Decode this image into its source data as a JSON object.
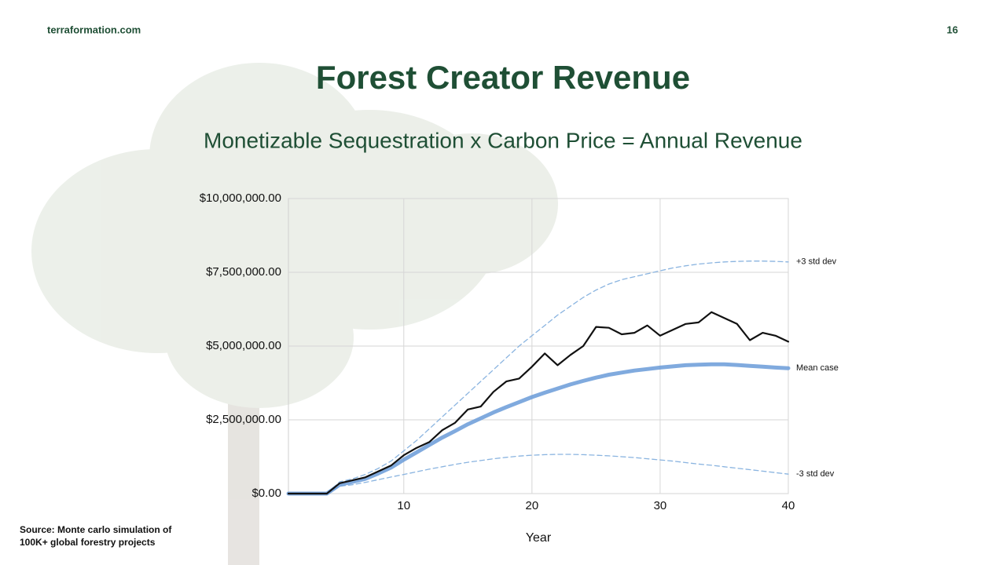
{
  "header": {
    "site": "terraformation.com",
    "page": "16"
  },
  "title": "Forest Creator Revenue",
  "subtitle": "Monetizable Sequestration x Carbon Price = Annual Revenue",
  "source": "Source: Monte carlo simulation of 100K+ global forestry projects",
  "chart_data": {
    "type": "line",
    "x_label": "Year",
    "x": [
      1,
      2,
      3,
      4,
      5,
      6,
      7,
      8,
      9,
      10,
      11,
      12,
      13,
      14,
      15,
      16,
      17,
      18,
      19,
      20,
      21,
      22,
      23,
      24,
      25,
      26,
      27,
      28,
      29,
      30,
      31,
      32,
      33,
      34,
      35,
      36,
      37,
      38,
      39,
      40
    ],
    "xlim": [
      1,
      40
    ],
    "xticks": [
      10,
      20,
      30,
      40
    ],
    "ylim": [
      0,
      10000000
    ],
    "yticks": [
      {
        "value": 0,
        "label": "$0.00"
      },
      {
        "value": 2500000,
        "label": "$2,500,000.00"
      },
      {
        "value": 5000000,
        "label": "$5,000,000.00"
      },
      {
        "value": 7500000,
        "label": "$7,500,000.00"
      },
      {
        "value": 10000000,
        "label": "$10,000,000.00"
      }
    ],
    "grid": true,
    "series": [
      {
        "name": "+3 std dev",
        "color": "#8ab4e0",
        "dash": true,
        "width": 1.3,
        "values": [
          null,
          null,
          null,
          0,
          400000,
          500000,
          650000,
          850000,
          1100000,
          1450000,
          1800000,
          2200000,
          2600000,
          3000000,
          3400000,
          3800000,
          4200000,
          4600000,
          5000000,
          5350000,
          5700000,
          6050000,
          6350000,
          6650000,
          6900000,
          7100000,
          7250000,
          7350000,
          7450000,
          7550000,
          7650000,
          7720000,
          7780000,
          7820000,
          7850000,
          7870000,
          7880000,
          7880000,
          7870000,
          7850000
        ]
      },
      {
        "name": "-3 std dev",
        "color": "#8ab4e0",
        "dash": true,
        "width": 1.3,
        "values": [
          null,
          null,
          null,
          0,
          250000,
          300000,
          380000,
          470000,
          560000,
          650000,
          740000,
          830000,
          910000,
          990000,
          1060000,
          1120000,
          1180000,
          1230000,
          1270000,
          1300000,
          1320000,
          1330000,
          1330000,
          1320000,
          1300000,
          1280000,
          1250000,
          1220000,
          1180000,
          1140000,
          1100000,
          1050000,
          1000000,
          960000,
          910000,
          860000,
          810000,
          760000,
          710000,
          660000
        ]
      },
      {
        "name": "Mean case",
        "color": "#6a9bd8",
        "dash": false,
        "width": 5,
        "values": [
          0,
          0,
          0,
          0,
          300000,
          400000,
          500000,
          680000,
          880000,
          1150000,
          1400000,
          1650000,
          1900000,
          2120000,
          2350000,
          2550000,
          2750000,
          2930000,
          3100000,
          3270000,
          3420000,
          3560000,
          3700000,
          3820000,
          3930000,
          4030000,
          4100000,
          4170000,
          4220000,
          4270000,
          4310000,
          4350000,
          4370000,
          4380000,
          4380000,
          4360000,
          4330000,
          4300000,
          4270000,
          4250000
        ]
      },
      {
        "color": "#111111",
        "dash": false,
        "width": 2.2,
        "values": [
          0,
          0,
          0,
          0,
          350000,
          450000,
          550000,
          750000,
          950000,
          1300000,
          1550000,
          1750000,
          2150000,
          2400000,
          2850000,
          2950000,
          3450000,
          3800000,
          3900000,
          4300000,
          4750000,
          4350000,
          4700000,
          5000000,
          5650000,
          5620000,
          5400000,
          5450000,
          5700000,
          5350000,
          5550000,
          5750000,
          5800000,
          6150000,
          5950000,
          5750000,
          5200000,
          5450000,
          5350000,
          5150000
        ]
      }
    ]
  }
}
